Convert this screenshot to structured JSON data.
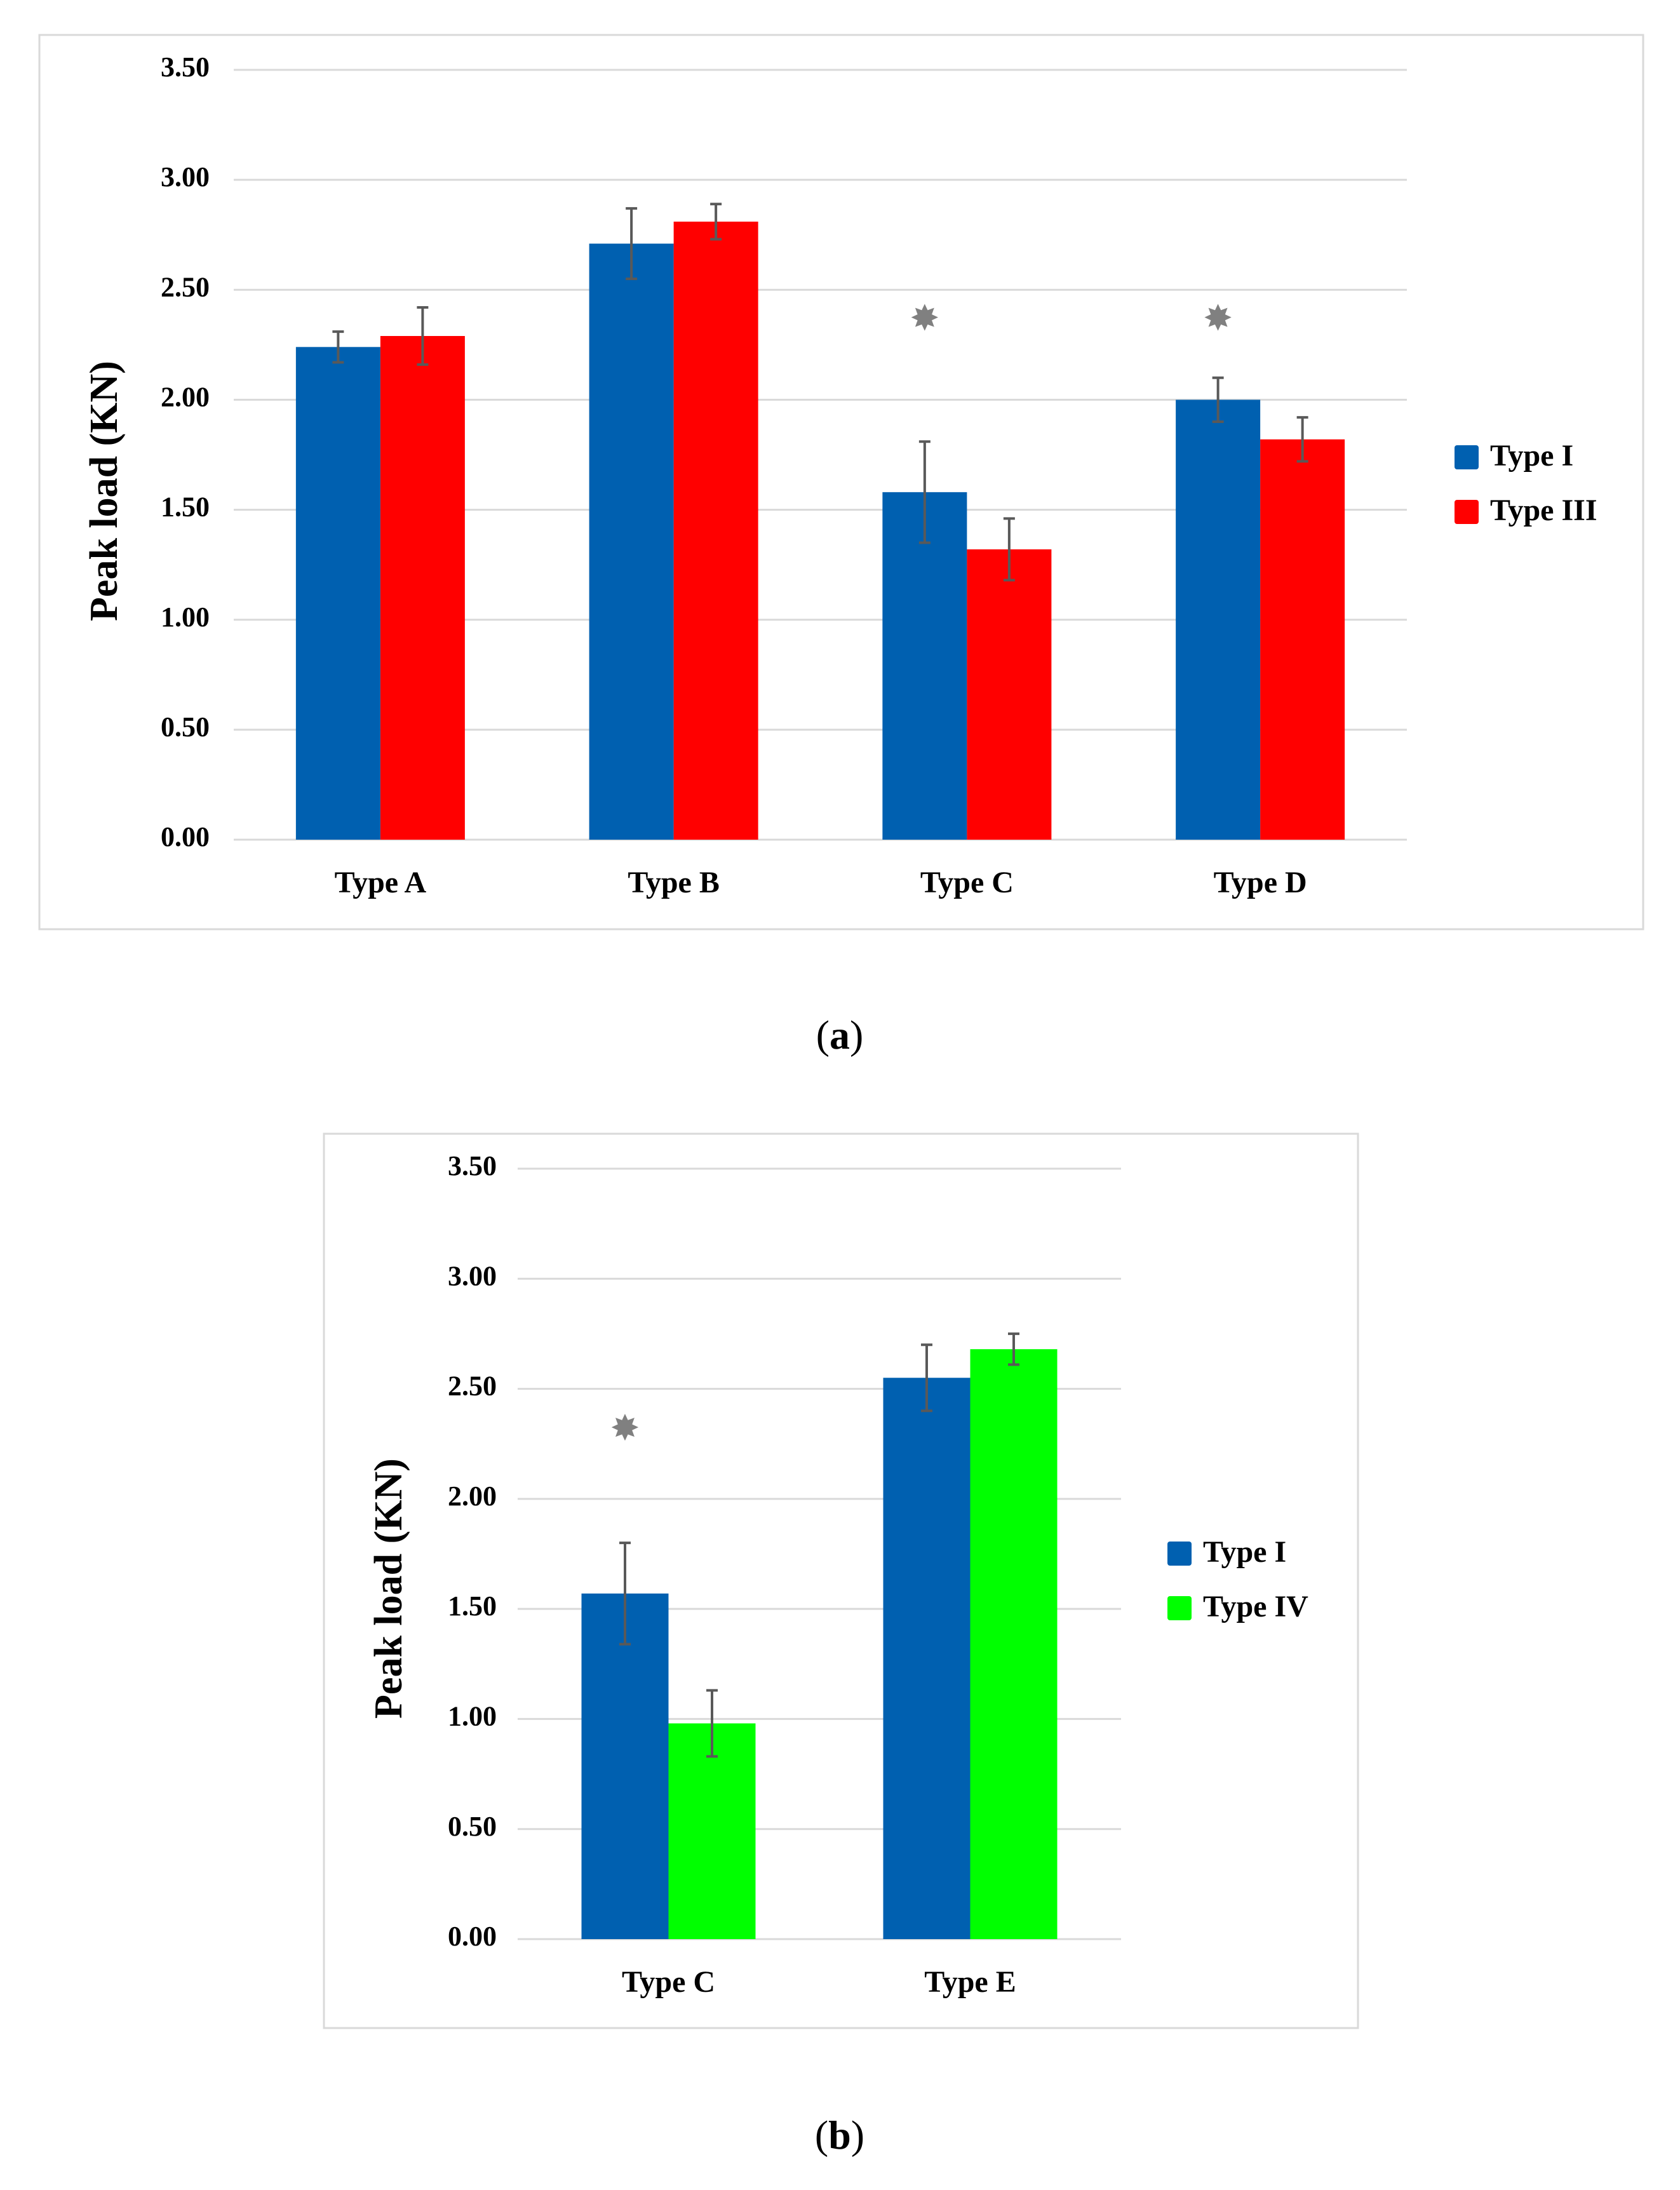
{
  "chart_data": [
    {
      "type": "bar",
      "panel": "a",
      "caption_letter": "a",
      "ylabel": "Peak load (KN)",
      "xlabel": "",
      "ylim": [
        0,
        3.5
      ],
      "yticks": [
        "0.00",
        "0.50",
        "1.00",
        "1.50",
        "2.00",
        "2.50",
        "3.00",
        "3.50"
      ],
      "categories": [
        "Type A",
        "Type B",
        "Type C",
        "Type D"
      ],
      "series": [
        {
          "name": "Type I",
          "color": "#0060B0",
          "values": [
            2.24,
            2.71,
            1.58,
            2.0
          ],
          "errors": [
            0.07,
            0.16,
            0.23,
            0.1
          ]
        },
        {
          "name": "Type III",
          "color": "#FF0000",
          "values": [
            2.29,
            2.81,
            1.32,
            1.82
          ],
          "errors": [
            0.13,
            0.08,
            0.14,
            0.1
          ]
        }
      ],
      "significance_marks": [
        {
          "category": "Type C",
          "value": 2.36,
          "symbol": "✸"
        },
        {
          "category": "Type D",
          "value": 2.36,
          "symbol": "✸"
        }
      ],
      "legend_position": "right",
      "grid": true
    },
    {
      "type": "bar",
      "panel": "b",
      "caption_letter": "b",
      "ylabel": "Peak load (KN)",
      "xlabel": "",
      "ylim": [
        0,
        3.5
      ],
      "yticks": [
        "0.00",
        "0.50",
        "1.00",
        "1.50",
        "2.00",
        "2.50",
        "3.00",
        "3.50"
      ],
      "categories": [
        "Type C",
        "Type E"
      ],
      "series": [
        {
          "name": "Type I",
          "color": "#0060B0",
          "values": [
            1.57,
            2.55
          ],
          "errors": [
            0.23,
            0.15
          ]
        },
        {
          "name": "Type IV",
          "color": "#00FF00",
          "values": [
            0.98,
            2.68
          ],
          "errors": [
            0.15,
            0.07
          ]
        }
      ],
      "significance_marks": [
        {
          "category": "Type C",
          "value": 2.31,
          "symbol": "✸"
        }
      ],
      "legend_position": "right",
      "grid": true
    }
  ]
}
